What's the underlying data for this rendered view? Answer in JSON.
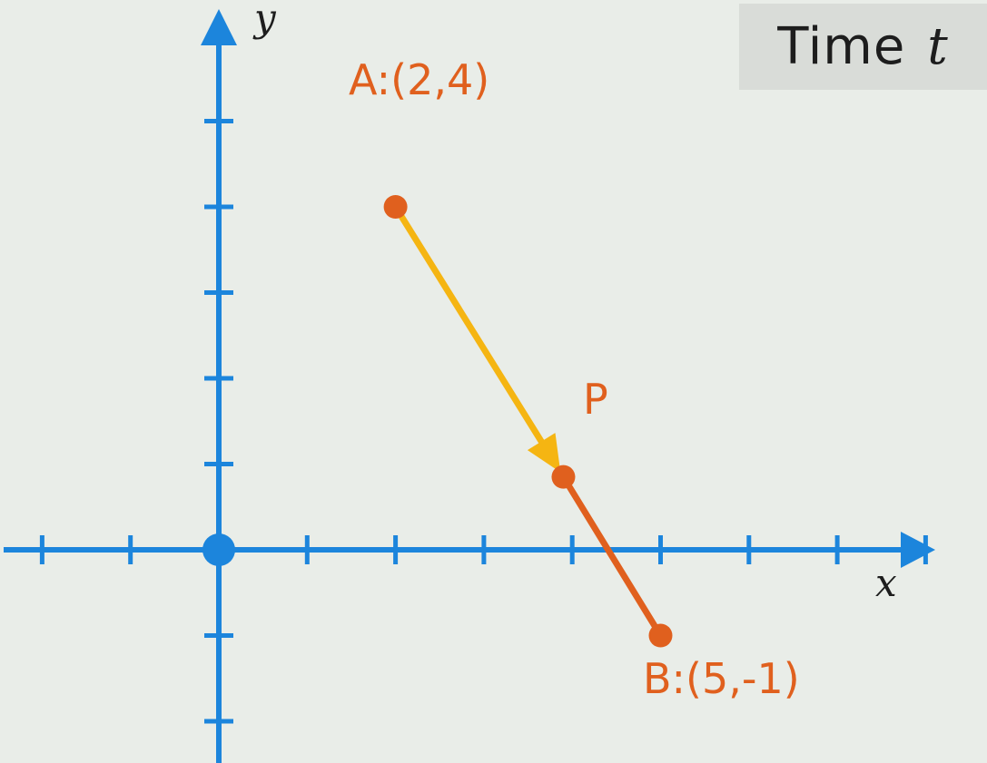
{
  "time_label": {
    "text": "Time",
    "variable": "t"
  },
  "axes": {
    "x_label": "x",
    "y_label": "y",
    "x_range": [
      -2,
      8
    ],
    "y_range": [
      -2,
      5
    ],
    "tick_step": 1
  },
  "points": [
    {
      "id": "A",
      "label": "A:(2,4)",
      "x": 2,
      "y": 4
    },
    {
      "id": "B",
      "label": "B:(5,-1)",
      "x": 5,
      "y": -1
    },
    {
      "id": "P",
      "label": "P",
      "x": 3.9,
      "y": 0.85
    }
  ],
  "colors": {
    "axis": "#1c85dc",
    "point": "#e0601e",
    "segment": "#e0601e",
    "vector": "#f5b512",
    "label": "#e0601e"
  }
}
